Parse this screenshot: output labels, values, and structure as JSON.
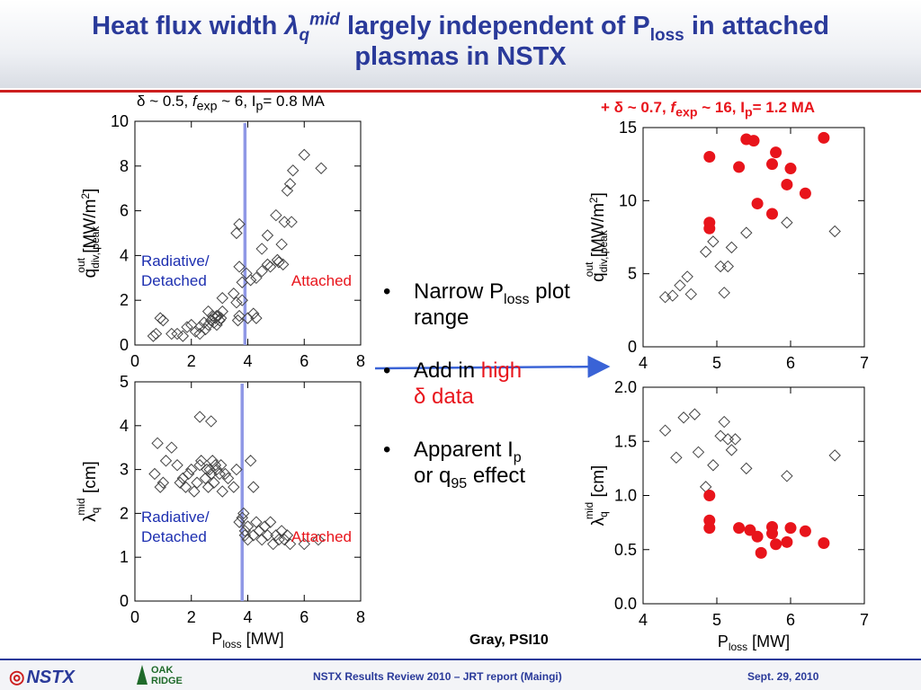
{
  "slide": {
    "title_part1": "Heat flux width ",
    "title_lambda": "λ",
    "title_q": "q",
    "title_mid": "mid",
    "title_part2": " largely independent of P",
    "title_loss": "loss",
    "title_part3": " in attached",
    "title_line2": "plasmas in NSTX",
    "subtitle_left": {
      "delta": "δ",
      "t1": " ~ 0.5, ",
      "f": "f",
      "exp": "exp",
      "t2": " ~ 6, I",
      "p": "p",
      "t3": "= 0.8 MA"
    },
    "subtitle_right": {
      "plus": "+ ",
      "delta": "δ",
      "t1": " ~ 0.7, ",
      "f": "f",
      "exp": "exp",
      "t2": " ~ 16, I",
      "p": "p",
      "t3": "= 1.2 MA"
    },
    "credit": "Gray, PSI10",
    "footer_center": "NSTX Results Review 2010 – JRT report (Maingi)",
    "footer_right": "Sept. 29, 2010",
    "nstx_logo": "NSTX",
    "ornl_logo_line1": "OAK",
    "ornl_logo_line2": "RIDGE",
    "bullets": [
      {
        "t1": "Narrow P",
        "sub": "loss",
        "t2": " plot range"
      },
      {
        "t1": "Add in ",
        "red1": "high",
        "red2": "δ data"
      },
      {
        "t1": "Apparent I",
        "sub": "p",
        "t2": " or q",
        "sub2": "95",
        "t3": " effect"
      }
    ]
  },
  "colors": {
    "title": "#2a3a9a",
    "accent_red": "#e8141b",
    "vline": "#8f98e6",
    "arrow": "#3a63d6",
    "left_label": "#1d2fb0"
  },
  "chart_data": [
    {
      "type": "scatter",
      "xlim": [
        0,
        8
      ],
      "ylim": [
        0,
        10
      ],
      "xticks": [
        0,
        2,
        4,
        6,
        8
      ],
      "yticks": [
        0,
        2,
        4,
        6,
        8,
        10
      ],
      "ylabel": {
        "a": "q",
        "b": "div, peak",
        "c": "out",
        "d": " [MW/m",
        "e": "2",
        "f": "]"
      },
      "vline_x": 3.9,
      "annotations": {
        "left1": "Radiative/",
        "left2": "Detached",
        "right": "Attached"
      },
      "series": [
        {
          "marker": "open-diamond",
          "x": [
            0.65,
            0.75,
            0.9,
            1.0,
            1.3,
            1.5,
            1.7,
            1.85,
            2.0,
            2.15,
            2.3,
            2.45,
            2.5,
            2.6,
            2.7,
            2.75,
            2.8,
            2.85,
            2.9,
            2.95,
            3.0,
            3.05,
            3.1,
            2.3,
            2.6,
            2.9,
            3.1,
            3.5,
            3.6,
            3.7,
            3.8,
            3.95,
            4.1,
            4.3,
            3.6,
            3.7,
            3.65,
            3.7,
            4.0,
            4.2,
            4.5,
            4.7,
            4.8,
            4.5,
            4.7,
            5.0,
            5.1,
            5.2,
            5.3,
            5.4,
            5.5,
            5.6,
            5.05,
            5.25,
            5.55,
            6.0,
            6.6,
            3.8,
            4.3
          ],
          "y": [
            0.4,
            0.5,
            1.2,
            1.1,
            0.5,
            0.5,
            0.4,
            0.8,
            0.9,
            0.6,
            0.5,
            1.0,
            0.7,
            0.9,
            1.1,
            1.3,
            1.0,
            1.2,
            0.9,
            1.3,
            1.1,
            1.2,
            1.5,
            0.8,
            1.5,
            1.3,
            2.1,
            2.3,
            1.9,
            3.5,
            2.8,
            3.2,
            2.9,
            1.2,
            5.0,
            5.4,
            1.1,
            1.3,
            1.2,
            1.4,
            3.3,
            3.6,
            3.5,
            4.3,
            4.9,
            5.8,
            3.7,
            4.5,
            5.5,
            6.9,
            7.2,
            7.8,
            3.8,
            3.6,
            5.5,
            8.5,
            7.9,
            2.0,
            3.0
          ]
        }
      ]
    },
    {
      "type": "scatter",
      "xlim": [
        0,
        8
      ],
      "ylim": [
        0,
        5
      ],
      "xticks": [
        0,
        2,
        4,
        6,
        8
      ],
      "yticks": [
        0,
        1,
        2,
        3,
        4,
        5
      ],
      "xlabel": {
        "a": "P",
        "b": "loss",
        "c": " [MW]"
      },
      "ylabel": {
        "a": "λ",
        "b": "q",
        "c": "mid",
        "d": " [cm]"
      },
      "vline_x": 3.8,
      "annotations": {
        "left1": "Radiative/",
        "left2": "Detached",
        "right": "Attached"
      },
      "series": [
        {
          "marker": "open-diamond",
          "x": [
            0.7,
            0.8,
            0.9,
            1.0,
            1.1,
            1.3,
            1.5,
            1.6,
            1.7,
            1.8,
            1.9,
            2.0,
            2.1,
            2.2,
            2.3,
            2.35,
            2.5,
            2.55,
            2.6,
            2.65,
            2.7,
            2.75,
            2.8,
            2.85,
            2.9,
            3.0,
            3.05,
            3.1,
            3.2,
            3.3,
            3.5,
            3.6,
            3.7,
            3.8,
            3.9,
            4.0,
            4.1,
            4.2,
            4.3,
            4.4,
            4.5,
            4.6,
            4.7,
            4.8,
            4.9,
            5.0,
            5.1,
            5.2,
            5.3,
            5.4,
            5.5,
            6.0,
            6.5,
            3.85,
            3.9,
            4.0,
            4.2,
            2.3,
            2.7
          ],
          "y": [
            2.9,
            3.6,
            2.6,
            2.7,
            3.2,
            3.5,
            3.1,
            2.7,
            2.8,
            2.6,
            2.9,
            3.0,
            2.5,
            2.7,
            3.1,
            3.2,
            2.8,
            3.0,
            2.6,
            3.0,
            2.9,
            3.2,
            2.7,
            3.1,
            3.0,
            2.9,
            3.1,
            2.5,
            2.9,
            2.8,
            2.6,
            3.0,
            1.8,
            1.9,
            1.5,
            1.4,
            3.2,
            2.6,
            1.8,
            1.6,
            1.4,
            1.7,
            1.5,
            1.8,
            1.3,
            1.5,
            1.4,
            1.6,
            1.4,
            1.5,
            1.3,
            1.3,
            1.4,
            2.0,
            1.6,
            1.7,
            1.5,
            4.2,
            4.1
          ]
        }
      ]
    },
    {
      "type": "scatter",
      "xlim": [
        4,
        7
      ],
      "ylim": [
        0,
        15
      ],
      "xticks": [
        4,
        5,
        6,
        7
      ],
      "yticks": [
        0,
        5,
        10,
        15
      ],
      "ylabel": {
        "a": "q",
        "b": "div, peak",
        "c": "out",
        "d": " [MW/m",
        "e": "2",
        "f": "]"
      },
      "series": [
        {
          "marker": "open-diamond",
          "x": [
            4.3,
            4.4,
            4.5,
            4.6,
            4.65,
            4.85,
            4.95,
            5.05,
            5.1,
            5.15,
            5.2,
            5.4,
            5.95,
            6.6
          ],
          "y": [
            3.4,
            3.5,
            4.2,
            4.8,
            3.6,
            6.5,
            7.2,
            5.5,
            3.7,
            5.5,
            6.8,
            7.8,
            8.5,
            7.9
          ]
        },
        {
          "marker": "filled-circle",
          "x": [
            4.9,
            4.9,
            4.9,
            5.3,
            5.4,
            5.5,
            5.55,
            5.75,
            5.8,
            5.75,
            5.95,
            6.0,
            6.2,
            6.45
          ],
          "y": [
            13.0,
            8.5,
            8.1,
            12.3,
            14.2,
            14.1,
            9.8,
            12.5,
            13.3,
            9.1,
            11.1,
            12.2,
            10.5,
            14.3
          ]
        }
      ]
    },
    {
      "type": "scatter",
      "xlim": [
        4,
        7
      ],
      "ylim": [
        0.0,
        2.0
      ],
      "xticks": [
        4,
        5,
        6,
        7
      ],
      "yticks": [
        0.0,
        0.5,
        1.0,
        1.5,
        2.0
      ],
      "ytick_labels": [
        "0.0",
        "0.5",
        "1.0",
        "1.5",
        "2.0"
      ],
      "xlabel": {
        "a": "P",
        "b": "loss",
        "c": " [MW]"
      },
      "ylabel": {
        "a": "λ",
        "b": "q",
        "c": "mid",
        "d": " [cm]"
      },
      "series": [
        {
          "marker": "open-diamond",
          "x": [
            4.3,
            4.45,
            4.55,
            4.7,
            4.75,
            4.85,
            4.95,
            5.05,
            5.1,
            5.15,
            5.2,
            5.25,
            5.4,
            5.95,
            6.6
          ],
          "y": [
            1.6,
            1.35,
            1.72,
            1.75,
            1.4,
            1.08,
            1.28,
            1.55,
            1.68,
            1.52,
            1.42,
            1.52,
            1.25,
            1.18,
            1.37
          ]
        },
        {
          "marker": "filled-circle",
          "x": [
            4.9,
            4.9,
            4.9,
            5.3,
            5.45,
            5.55,
            5.6,
            5.75,
            5.75,
            5.8,
            5.95,
            6.0,
            6.2,
            6.45
          ],
          "y": [
            1.0,
            0.77,
            0.7,
            0.7,
            0.68,
            0.62,
            0.47,
            0.71,
            0.65,
            0.55,
            0.57,
            0.7,
            0.67,
            0.56
          ]
        }
      ]
    }
  ]
}
